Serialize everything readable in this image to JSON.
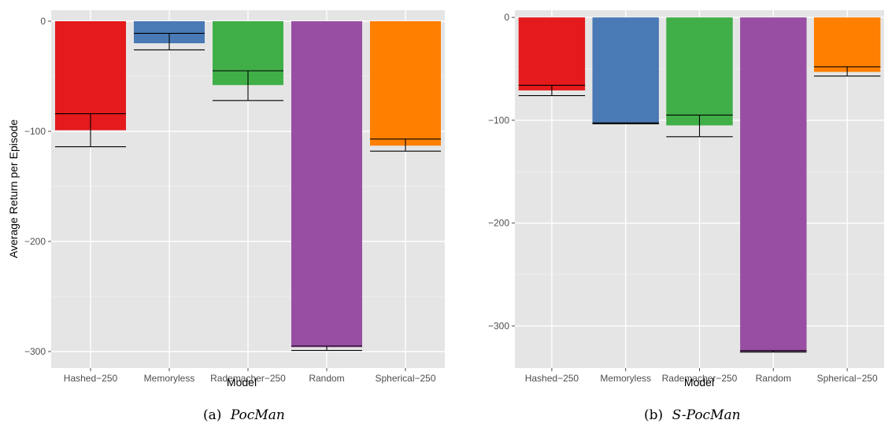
{
  "colors": {
    "panel_bg": "#e5e5e5",
    "grid_major": "#ffffff",
    "grid_minor": "#f0f0f0",
    "Hashed-250": "#e41a1c",
    "Memoryless": "#4a7ab5",
    "Rademacher-250": "#41af48",
    "Random": "#984ea3",
    "Spherical-250": "#ff7f00",
    "errorbar": "#000000"
  },
  "chart_data": [
    {
      "type": "bar",
      "caption_prefix": "(a)",
      "caption_name": "PocMan",
      "xlabel": "Model",
      "ylabel": "Average Return per Episode",
      "categories": [
        "Hashed−250",
        "Memoryless",
        "Rademacher−250",
        "Random",
        "Spherical−250"
      ],
      "values": [
        -99,
        -20,
        -58,
        -296,
        -113
      ],
      "error_low": [
        -114,
        -26,
        -72,
        -299,
        -118
      ],
      "error_high": [
        -84,
        -11,
        -45,
        -295,
        -107
      ],
      "ylim": [
        -315,
        10
      ],
      "yticks": [
        0,
        -100,
        -200,
        -300
      ],
      "ytick_labels": [
        "0",
        "−100",
        "−200",
        "−300"
      ],
      "grid": true
    },
    {
      "type": "bar",
      "caption_prefix": "(b)",
      "caption_name": "S-PocMan",
      "xlabel": "Model",
      "ylabel": "",
      "categories": [
        "Hashed−250",
        "Memoryless",
        "Rademacher−250",
        "Random",
        "Spherical−250"
      ],
      "values": [
        -71,
        -103,
        -105,
        -325,
        -53
      ],
      "error_low": [
        -76,
        -103.5,
        -116,
        -325.5,
        -57
      ],
      "error_high": [
        -66,
        -102.5,
        -95,
        -324,
        -48
      ],
      "ylim": [
        -341,
        7
      ],
      "yticks": [
        0,
        -100,
        -200,
        -300
      ],
      "ytick_labels": [
        "0",
        "−100",
        "−200",
        "−300"
      ],
      "grid": true
    }
  ]
}
